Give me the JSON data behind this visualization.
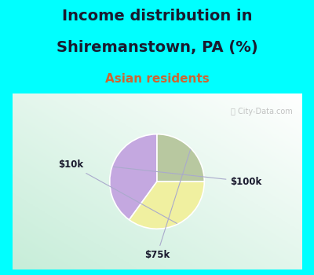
{
  "title_line1": "Income distribution in",
  "title_line2": "Shiremanstown, PA (%)",
  "subtitle": "Asian residents",
  "title_color": "#1a1a2e",
  "subtitle_color": "#cc6633",
  "background_color": "#00ffff",
  "chart_bg_color": "#e8f5ee",
  "watermark": "City-Data.com",
  "slices": [
    {
      "label": "$100k",
      "value": 40,
      "color": "#c4a8e0"
    },
    {
      "label": "$10k",
      "value": 35,
      "color": "#f0f0a0"
    },
    {
      "label": "$75k",
      "value": 25,
      "color": "#b8c8a0"
    }
  ],
  "startangle": 90,
  "figsize": [
    4.0,
    3.5
  ],
  "dpi": 100,
  "title_fontsize": 14,
  "subtitle_fontsize": 11
}
